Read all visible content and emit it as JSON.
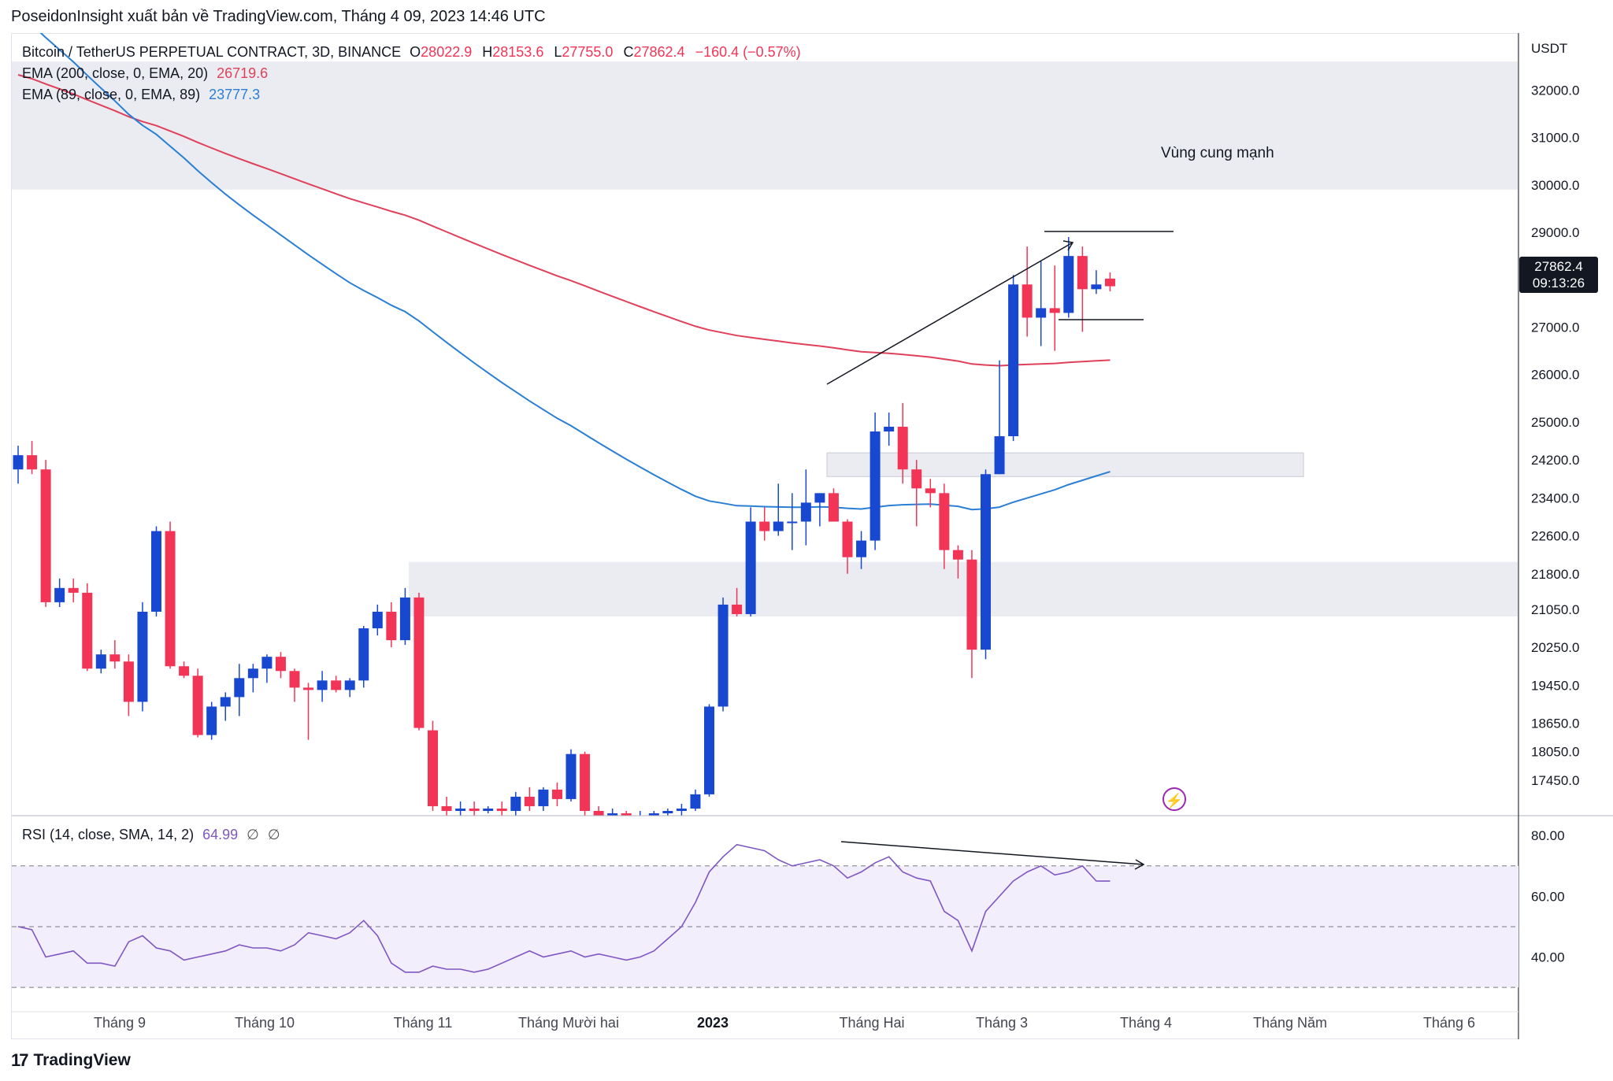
{
  "header": {
    "title": "PoseidonInsight xuất bản về TradingView.com, Tháng 4 09, 2023 14:46 UTC"
  },
  "legend": {
    "symbol": "Bitcoin / TetherUS PERPETUAL CONTRACT, 3D, BINANCE",
    "open_label": "O",
    "open": "28022.9",
    "high_label": "H",
    "high": "28153.6",
    "low_label": "L",
    "low": "27755.0",
    "close_label": "C",
    "close": "27862.4",
    "change": "−160.4 (−0.57%)",
    "ema200_label": "EMA (200, close, 0, EMA, 20)",
    "ema200_value": "26719.6",
    "ema89_label": "EMA (89, close, 0, EMA, 89)",
    "ema89_value": "23777.3",
    "rsi_label": "RSI (14, close, SMA, 14, 2)",
    "rsi_value": "64.99",
    "rsi_extra1": "∅",
    "rsi_extra2": "∅"
  },
  "price_axis": {
    "currency": "USDT",
    "ticks": [
      "32000.0",
      "31000.0",
      "30000.0",
      "29000.0",
      "27000.0",
      "26000.0",
      "25000.0",
      "24200.0",
      "23400.0",
      "22600.0",
      "21800.0",
      "21050.0",
      "20250.0",
      "19450.0",
      "18650.0",
      "18050.0",
      "17450.0"
    ],
    "current_price": "27862.4",
    "countdown": "09:13:26"
  },
  "rsi_axis": {
    "ticks": [
      "80.00",
      "60.00",
      "40.00"
    ]
  },
  "time_axis": {
    "labels": [
      "Tháng 9",
      "Tháng 10",
      "Tháng 11",
      "Tháng Mười hai",
      "2023",
      "Tháng Hai",
      "Tháng 3",
      "Tháng 4",
      "Tháng Năm",
      "Tháng 6"
    ]
  },
  "annotations": {
    "zone_label": "Vùng cung mạnh"
  },
  "footer": {
    "brand": "TradingView"
  },
  "colors": {
    "up": "#1848d0",
    "down": "#f23457",
    "ema200": "#e0405a",
    "ema89": "#2a7fd4",
    "rsi": "#7e57c2",
    "zone": "#ebecf2",
    "rsi_band": "#f3eefc"
  },
  "chart_data": {
    "type": "candlestick",
    "series": [
      {
        "name": "Bitcoin / TetherUS PERPETUAL CONTRACT, 3D, BINANCE",
        "ohlc_approx": [
          [
            24000,
            24500,
            23700,
            24300
          ],
          [
            24300,
            24600,
            23900,
            24000
          ],
          [
            24000,
            24200,
            21100,
            21200
          ],
          [
            21200,
            21700,
            21100,
            21500
          ],
          [
            21500,
            21700,
            21200,
            21400
          ],
          [
            21400,
            21600,
            19750,
            19800
          ],
          [
            19800,
            20200,
            19700,
            20100
          ],
          [
            20100,
            20400,
            19800,
            19950
          ],
          [
            19950,
            20100,
            18800,
            19100
          ],
          [
            19100,
            21200,
            18900,
            21000
          ],
          [
            21000,
            22800,
            20900,
            22700
          ],
          [
            22700,
            22900,
            19800,
            19850
          ],
          [
            19850,
            19950,
            19600,
            19650
          ],
          [
            19650,
            19800,
            18350,
            18400
          ],
          [
            18400,
            19100,
            18300,
            19000
          ],
          [
            19000,
            19300,
            18700,
            19200
          ],
          [
            19200,
            19900,
            18800,
            19600
          ],
          [
            19600,
            19900,
            19300,
            19800
          ],
          [
            19800,
            20100,
            19500,
            20050
          ],
          [
            20050,
            20150,
            19600,
            19750
          ],
          [
            19750,
            19800,
            19100,
            19400
          ],
          [
            19400,
            19500,
            18300,
            19350
          ],
          [
            19350,
            19750,
            19100,
            19550
          ],
          [
            19550,
            19650,
            19300,
            19350
          ],
          [
            19350,
            19600,
            19200,
            19550
          ],
          [
            19550,
            20700,
            19400,
            20650
          ],
          [
            20650,
            21150,
            20500,
            21000
          ],
          [
            21000,
            21200,
            20250,
            20400
          ],
          [
            20400,
            21500,
            20300,
            21300
          ],
          [
            21300,
            21400,
            18500,
            18550
          ],
          [
            18500,
            18700,
            16800,
            16900
          ],
          [
            16900,
            17100,
            16600,
            16800
          ],
          [
            16800,
            17000,
            16600,
            16850
          ],
          [
            16850,
            17000,
            16700,
            16800
          ],
          [
            16800,
            16900,
            16750,
            16850
          ],
          [
            16850,
            17000,
            16700,
            16800
          ],
          [
            16800,
            17200,
            16700,
            17100
          ],
          [
            17100,
            17300,
            16800,
            16900
          ],
          [
            16900,
            17300,
            16800,
            17250
          ],
          [
            17250,
            17400,
            16900,
            17050
          ],
          [
            17050,
            18100,
            17000,
            18000
          ],
          [
            18000,
            18050,
            16700,
            16800
          ],
          [
            16800,
            16900,
            16650,
            16700
          ],
          [
            16700,
            16850,
            16600,
            16750
          ],
          [
            16750,
            16800,
            16550,
            16650
          ],
          [
            16650,
            16800,
            16600,
            16700
          ],
          [
            16700,
            16800,
            16650,
            16750
          ],
          [
            16750,
            16850,
            16650,
            16800
          ],
          [
            16800,
            16950,
            16700,
            16850
          ],
          [
            16850,
            17250,
            16800,
            17150
          ],
          [
            17150,
            19050,
            17100,
            19000
          ],
          [
            19000,
            21300,
            18900,
            21150
          ],
          [
            21150,
            21500,
            20900,
            20950
          ],
          [
            20950,
            23200,
            20900,
            22900
          ],
          [
            22900,
            23200,
            22500,
            22700
          ],
          [
            22700,
            23700,
            22600,
            22900
          ],
          [
            22900,
            23500,
            22300,
            22900
          ],
          [
            22900,
            24000,
            22400,
            23300
          ],
          [
            23300,
            23500,
            22800,
            23500
          ],
          [
            23500,
            23600,
            22900,
            22900
          ],
          [
            22900,
            22950,
            21800,
            22150
          ],
          [
            22150,
            22700,
            21900,
            22500
          ],
          [
            22500,
            25200,
            22300,
            24800
          ],
          [
            24800,
            25200,
            24500,
            24900
          ],
          [
            24900,
            25400,
            23700,
            24000
          ],
          [
            24000,
            24200,
            22800,
            23600
          ],
          [
            23600,
            23800,
            23200,
            23500
          ],
          [
            23500,
            23700,
            21900,
            22300
          ],
          [
            22300,
            22400,
            21700,
            22100
          ],
          [
            22100,
            22300,
            19600,
            20200
          ],
          [
            20200,
            24000,
            20000,
            23900
          ],
          [
            23900,
            26300,
            23900,
            24700
          ],
          [
            24700,
            28100,
            24600,
            27900
          ],
          [
            27900,
            28700,
            26800,
            27200
          ],
          [
            27200,
            28400,
            26600,
            27400
          ],
          [
            27400,
            28300,
            26500,
            27300
          ],
          [
            27300,
            28900,
            27200,
            28500
          ],
          [
            28500,
            28700,
            26900,
            27800
          ],
          [
            27800,
            28200,
            27700,
            27900
          ],
          [
            28022.9,
            28153.6,
            27755.0,
            27862.4
          ]
        ]
      }
    ],
    "ema200": {
      "name": "EMA (200, close, 0, EMA, 20)",
      "last": 26719.6
    },
    "ema89": {
      "name": "EMA (89, close, 0, EMA, 89)",
      "last": 23777.3
    },
    "rsi": {
      "name": "RSI (14, close, SMA, 14, 2)",
      "last": 64.99,
      "overbought": 70,
      "mid": 50,
      "oversold": 30,
      "values_approx": [
        50,
        49,
        40,
        41,
        42,
        38,
        38,
        37,
        45,
        47,
        43,
        42,
        39,
        40,
        41,
        42,
        44,
        43,
        43,
        42,
        44,
        48,
        47,
        46,
        48,
        52,
        47,
        38,
        35,
        35,
        37,
        36,
        36,
        35,
        36,
        38,
        40,
        42,
        40,
        41,
        42,
        40,
        41,
        40,
        39,
        40,
        42,
        46,
        50,
        58,
        68,
        73,
        77,
        76,
        75,
        72,
        70,
        71,
        72,
        70,
        66,
        68,
        71,
        73,
        68,
        66,
        65,
        55,
        52,
        42,
        55,
        60,
        65,
        68,
        70,
        67,
        68,
        70,
        65,
        64.99
      ]
    },
    "zones": [
      {
        "label": "Vùng cung mạnh",
        "from": 29900,
        "to": 32600
      },
      {
        "from": 23850,
        "to": 24350
      },
      {
        "from": 20900,
        "to": 22050
      }
    ],
    "y_range_price": [
      16700,
      33200
    ],
    "y_range_rsi": [
      22,
      86
    ]
  }
}
